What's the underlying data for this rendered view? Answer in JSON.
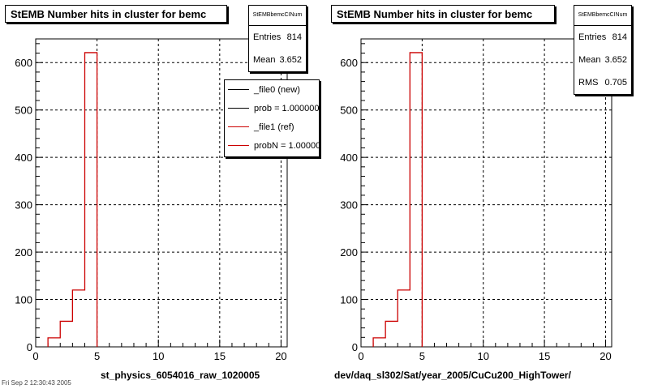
{
  "pages": [
    {
      "title": "StEMB Number hits in cluster for bemc",
      "stats": {
        "name": "StEMBbemcCINum",
        "rows": [
          {
            "label": "Entries",
            "value": "814"
          },
          {
            "label": "Mean",
            "value": "3.652"
          }
        ]
      },
      "legend": [
        {
          "label": "_file0 (new)",
          "color": "#000000"
        },
        {
          "label": "prob = 1.000000",
          "color": "#000000"
        },
        {
          "label": "_file1 (ref)",
          "color": "#cc0000"
        },
        {
          "label": "probN = 1.000000",
          "color": "#cc0000"
        }
      ],
      "file_label": "st_physics_6054016_raw_1020005"
    },
    {
      "title": "StEMB Number hits in cluster for bemc",
      "stats": {
        "name": "StEMBbemcCINum",
        "rows": [
          {
            "label": "Entries",
            "value": "814"
          },
          {
            "label": "Mean",
            "value": "3.652"
          },
          {
            "label": "RMS",
            "value": "0.705"
          }
        ]
      },
      "legend": [],
      "file_label": "dev/daq_sl302/Sat/year_2005/CuCu200_HighTower/"
    }
  ],
  "footer": "Fri Sep  2 12:30:43 2005",
  "colors": {
    "hist": "#cc0000",
    "grid": "#000000",
    "background": "#ffffff"
  },
  "chart_data": [
    {
      "type": "bar",
      "title": "StEMB Number hits in cluster for bemc",
      "xlabel": "st_physics_6054016_raw_1020005",
      "ylabel": "",
      "xlim": [
        0,
        20.5
      ],
      "ylim": [
        0,
        650
      ],
      "xticks": [
        0,
        5,
        10,
        15,
        20
      ],
      "yticks": [
        0,
        100,
        200,
        300,
        400,
        500,
        600
      ],
      "grid": true,
      "legend_position": "top-right",
      "series": [
        {
          "name": "_file1 (ref)",
          "bins": [
            [
              1,
              2,
              19
            ],
            [
              2,
              3,
              54
            ],
            [
              3,
              4,
              120
            ],
            [
              4,
              5,
              621
            ]
          ]
        }
      ]
    },
    {
      "type": "bar",
      "title": "StEMB Number hits in cluster for bemc",
      "xlabel": "dev/daq_sl302/Sat/year_2005/CuCu200_HighTower/",
      "ylabel": "",
      "xlim": [
        0,
        20.5
      ],
      "ylim": [
        0,
        650
      ],
      "xticks": [
        0,
        5,
        10,
        15,
        20
      ],
      "yticks": [
        0,
        100,
        200,
        300,
        400,
        500,
        600
      ],
      "grid": true,
      "series": [
        {
          "bins": [
            [
              1,
              2,
              19
            ],
            [
              2,
              3,
              54
            ],
            [
              3,
              4,
              120
            ],
            [
              4,
              5,
              621
            ]
          ]
        }
      ]
    }
  ]
}
